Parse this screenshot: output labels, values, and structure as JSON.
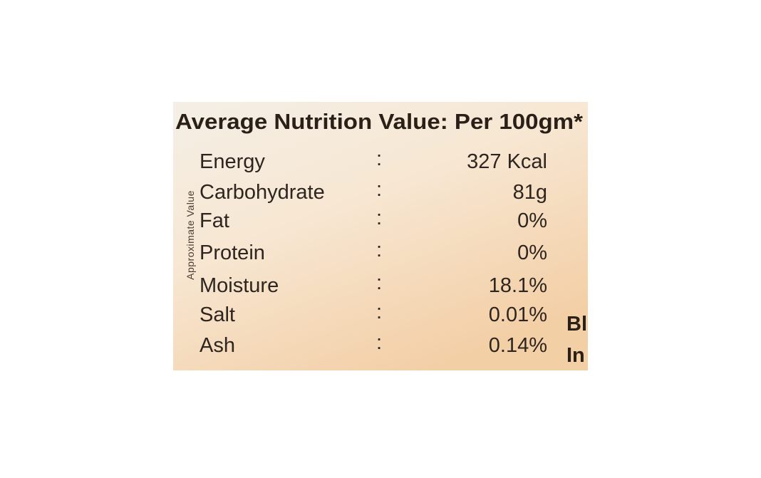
{
  "header": {
    "title": "Average Nutrition Value: Per 100gm*"
  },
  "side_label": "Approximate Value",
  "separator": ":",
  "table": {
    "rows": [
      [
        "Energy",
        "327 Kcal"
      ],
      [
        "Carbohydrate",
        "81g"
      ],
      [
        "Fat",
        "0%"
      ],
      [
        "Protein",
        "0%"
      ],
      [
        "Moisture",
        "18.1%"
      ],
      [
        "Salt",
        "0.01%"
      ],
      [
        "Ash",
        "0.14%"
      ]
    ]
  },
  "cutoff_text": [
    "Bl",
    "In"
  ]
}
